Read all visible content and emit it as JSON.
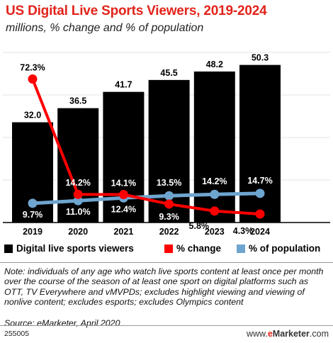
{
  "chart_data": {
    "type": "bar",
    "title": "US Digital Live Sports Viewers, 2019-2024",
    "subtitle": "millions, % change and % of population",
    "categories": [
      "2019",
      "2020",
      "2021",
      "2022",
      "2023",
      "2024"
    ],
    "series": [
      {
        "name": "Digital live sports viewers",
        "type": "bar",
        "values": [
          32.0,
          36.5,
          41.7,
          45.5,
          48.2,
          50.3
        ],
        "labels": [
          "32.0",
          "36.5",
          "41.7",
          "45.5",
          "48.2",
          "50.3"
        ],
        "color": "#000000"
      },
      {
        "name": "% change",
        "type": "line",
        "values": [
          72.3,
          14.2,
          14.1,
          9.3,
          5.8,
          4.3
        ],
        "labels": [
          "72.3%",
          "14.2%",
          "14.1%",
          "9.3%",
          "5.8%",
          "4.3%"
        ],
        "color": "#ff0000"
      },
      {
        "name": "% of population",
        "type": "line",
        "values": [
          9.7,
          11.0,
          12.4,
          13.5,
          14.2,
          14.7
        ],
        "labels": [
          "9.7%",
          "11.0%",
          "12.4%",
          "13.5%",
          "14.2%",
          "14.7%"
        ],
        "color": "#6ea5cf"
      }
    ],
    "ylim": [
      0,
      57
    ],
    "line_ylim": [
      0,
      90
    ]
  },
  "legend": {
    "viewers": "Digital live sports viewers",
    "change": "% change",
    "population": "% of population"
  },
  "note": "Note: individuals of any age who watch live sports content at least once per month over the course of the season of at least one sport on digital platforms such as OTT, TV Everywhere and vMVPDs; excludes highlight viewing and viewing of nonlive content; excludes esports; excludes Olympics content",
  "source": "Source: eMarketer, April 2020",
  "chart_id": "255005",
  "brand": {
    "prefix": "www.",
    "e": "e",
    "rest": "Marketer",
    "suffix": ".com"
  },
  "colors": {
    "title": "#e2231a",
    "bar": "#000000",
    "change": "#ff0000",
    "population": "#6ea5cf"
  }
}
